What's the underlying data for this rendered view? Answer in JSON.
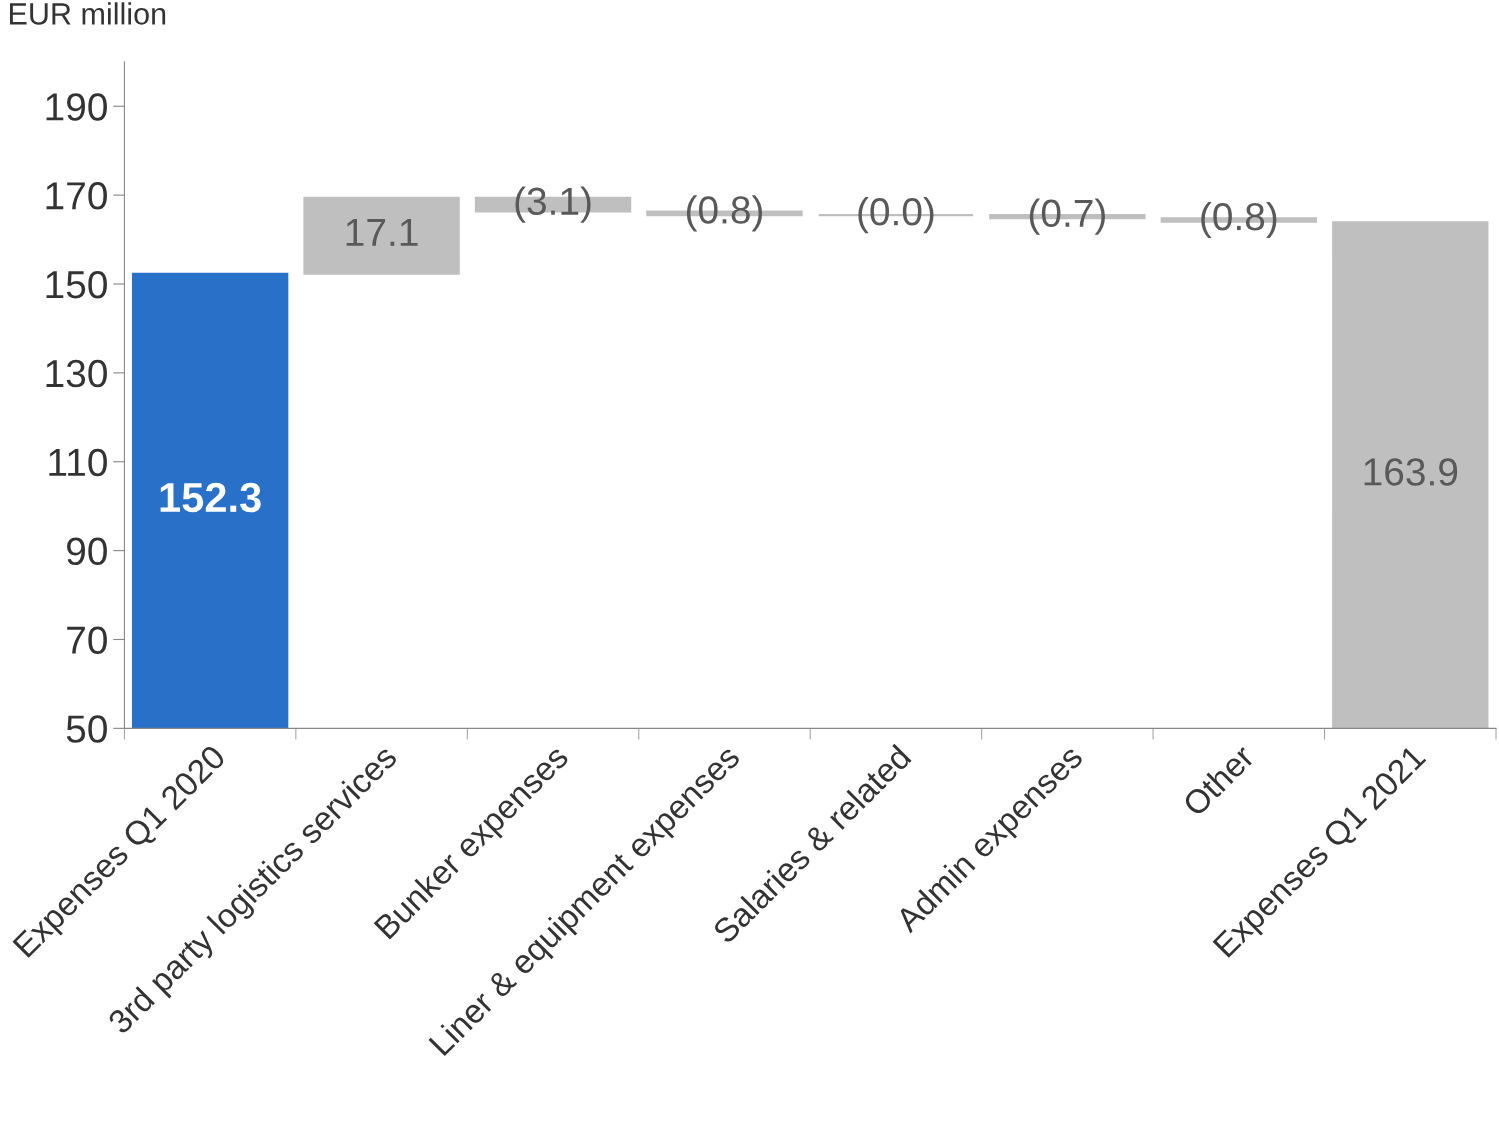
{
  "chart_data": {
    "type": "bar",
    "ylabel": "EUR million",
    "categories": [
      "Expenses Q1 2020",
      "3rd party logistics services",
      "Bunker expenses",
      "Liner & equipment expenses",
      "Salaries & related",
      "Admin expenses",
      "Other",
      "Expenses Q1 2021"
    ],
    "base": [
      50,
      152.3,
      169.4,
      166.3,
      165.5,
      165.5,
      164.8,
      50
    ],
    "values": [
      102.3,
      17.1,
      -3.1,
      -0.8,
      0.0,
      -0.7,
      -0.8,
      113.9
    ],
    "value_labels": [
      "152.3",
      "17.1",
      "(3.1)",
      "(0.8)",
      "(0.0)",
      "(0.7)",
      "(0.8)",
      "163.9"
    ],
    "colors": [
      "#2970c8",
      "#bfbfbf",
      "#bfbfbf",
      "#bfbfbf",
      "#bfbfbf",
      "#bfbfbf",
      "#bfbfbf",
      "#bfbfbf"
    ],
    "ylim": [
      50,
      200
    ],
    "yticks": [
      50,
      70,
      90,
      110,
      130,
      150,
      170,
      190
    ],
    "grid": false
  }
}
